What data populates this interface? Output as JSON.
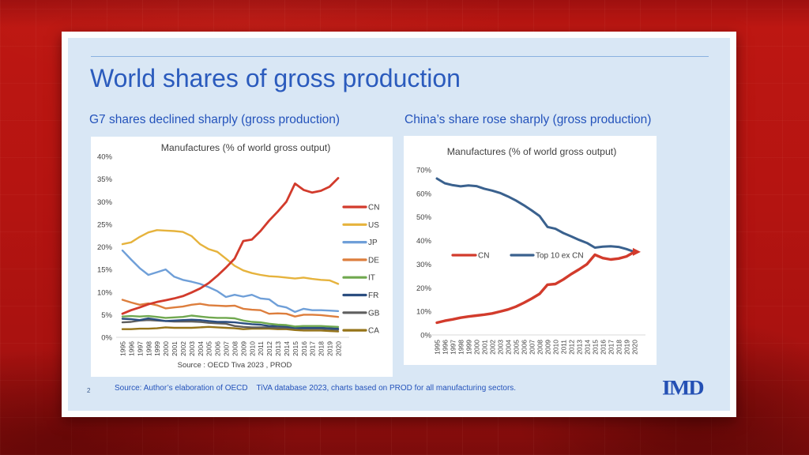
{
  "slide": {
    "page_number": "2",
    "title": "World shares of gross production",
    "subtitle_left": "G7 shares declined sharply (gross production)",
    "subtitle_right": "China’s share rose sharply (gross production)",
    "footer_source": "Source: Author’s elaboration of OECD    TiVA database 2023, charts based on PROD for all manufacturing sectors.",
    "logo": "IMD"
  },
  "colors": {
    "background_red": "#b11310",
    "slide_blue": "#d9e7f5",
    "accent_blue": "#2b5bbd",
    "logo_blue": "#2450b4",
    "chart_text": "#404040",
    "baseline_gray": "#d9d9d9"
  },
  "chart_data": [
    {
      "type": "line",
      "title": "Manufactures (% of world gross output)",
      "source_note": "Source : OECD Tiva 2023 , PROD",
      "x": [
        1995,
        1996,
        1997,
        1998,
        1999,
        2000,
        2001,
        2002,
        2003,
        2004,
        2005,
        2006,
        2007,
        2008,
        2009,
        2010,
        2011,
        2012,
        2013,
        2014,
        2015,
        2016,
        2017,
        2018,
        2019,
        2020
      ],
      "ylim": [
        0,
        40
      ],
      "ytick_step": 5,
      "grid": false,
      "legend_position": "right",
      "series": [
        {
          "name": "CN",
          "color": "#d23b2c",
          "values": [
            5.2,
            6.0,
            6.6,
            7.3,
            7.8,
            8.2,
            8.6,
            9.1,
            9.9,
            10.8,
            12.0,
            13.6,
            15.4,
            17.4,
            21.3,
            21.6,
            23.5,
            25.8,
            27.8,
            30.0,
            34.0,
            32.6,
            32.0,
            32.4,
            33.3,
            35.2
          ]
        },
        {
          "name": "US",
          "color": "#e6b33d",
          "values": [
            20.6,
            21.0,
            22.2,
            23.2,
            23.7,
            23.6,
            23.5,
            23.3,
            22.4,
            20.6,
            19.5,
            18.9,
            17.4,
            15.8,
            14.8,
            14.2,
            13.8,
            13.5,
            13.4,
            13.2,
            13.0,
            13.2,
            12.9,
            12.7,
            12.6,
            11.8
          ]
        },
        {
          "name": "JP",
          "color": "#6f9fd8",
          "values": [
            19.2,
            17.2,
            15.3,
            13.8,
            14.4,
            15.0,
            13.4,
            12.7,
            12.3,
            11.8,
            11.1,
            10.2,
            8.9,
            9.4,
            9.0,
            9.4,
            8.6,
            8.4,
            7.0,
            6.6,
            5.6,
            6.3,
            6.0,
            6.0,
            5.9,
            5.8
          ]
        },
        {
          "name": "DE",
          "color": "#dd7e3d",
          "values": [
            8.3,
            7.7,
            7.2,
            7.5,
            7.1,
            6.4,
            6.6,
            6.8,
            7.2,
            7.4,
            7.1,
            7.0,
            6.9,
            7.0,
            6.3,
            6.1,
            6.0,
            5.2,
            5.3,
            5.2,
            4.6,
            5.0,
            5.0,
            4.9,
            4.7,
            4.5
          ]
        },
        {
          "name": "IT",
          "color": "#70a84f",
          "values": [
            4.6,
            4.7,
            4.6,
            4.7,
            4.5,
            4.3,
            4.4,
            4.5,
            4.8,
            4.6,
            4.4,
            4.3,
            4.3,
            4.2,
            3.7,
            3.4,
            3.3,
            3.0,
            2.8,
            2.7,
            2.4,
            2.5,
            2.5,
            2.5,
            2.4,
            2.3
          ]
        },
        {
          "name": "FR",
          "color": "#2b4e80",
          "values": [
            4.1,
            4.0,
            3.8,
            4.2,
            3.9,
            3.6,
            3.7,
            3.8,
            3.9,
            3.8,
            3.6,
            3.4,
            3.4,
            3.3,
            3.1,
            2.9,
            2.8,
            2.5,
            2.5,
            2.4,
            2.1,
            2.1,
            2.1,
            2.1,
            2.0,
            1.9
          ]
        },
        {
          "name": "GB",
          "color": "#5f5f5f",
          "values": [
            3.3,
            3.4,
            3.7,
            3.8,
            3.7,
            3.6,
            3.5,
            3.5,
            3.5,
            3.4,
            3.2,
            3.1,
            3.0,
            2.5,
            2.3,
            2.2,
            2.2,
            2.2,
            2.1,
            2.1,
            2.0,
            1.9,
            1.9,
            1.9,
            1.8,
            1.7
          ]
        },
        {
          "name": "CA",
          "color": "#967419",
          "values": [
            1.8,
            1.8,
            1.9,
            1.9,
            2.0,
            2.2,
            2.1,
            2.1,
            2.1,
            2.2,
            2.3,
            2.2,
            2.1,
            2.0,
            1.8,
            1.9,
            1.9,
            1.9,
            1.8,
            1.8,
            1.6,
            1.5,
            1.5,
            1.5,
            1.4,
            1.3
          ]
        }
      ]
    },
    {
      "type": "line",
      "title": "Manufactures (% of world gross output)",
      "x": [
        1995,
        1996,
        1997,
        1998,
        1999,
        2000,
        2001,
        2002,
        2003,
        2004,
        2005,
        2006,
        2007,
        2008,
        2009,
        2010,
        2011,
        2012,
        2013,
        2014,
        2015,
        2016,
        2017,
        2018,
        2019,
        2020
      ],
      "ylim": [
        0,
        70
      ],
      "ytick_step": 10,
      "grid": false,
      "legend_position": "inside",
      "series": [
        {
          "name": "CN",
          "color": "#d23b2c",
          "end_marker": "arrow",
          "values": [
            5.2,
            6.0,
            6.6,
            7.3,
            7.8,
            8.2,
            8.6,
            9.1,
            9.9,
            10.8,
            12.0,
            13.6,
            15.4,
            17.4,
            21.3,
            21.6,
            23.5,
            25.8,
            27.8,
            30.0,
            34.0,
            32.6,
            32.0,
            32.4,
            33.3,
            35.2
          ]
        },
        {
          "name": "Top 10 ex CN",
          "color": "#3a618e",
          "values": [
            66.3,
            64.3,
            63.5,
            63.0,
            63.4,
            63.1,
            62.0,
            61.2,
            60.2,
            58.7,
            57.0,
            55.0,
            52.8,
            50.4,
            45.8,
            45.0,
            43.2,
            41.8,
            40.3,
            39.0,
            37.0,
            37.4,
            37.6,
            37.3,
            36.4,
            35.2
          ]
        }
      ]
    }
  ]
}
